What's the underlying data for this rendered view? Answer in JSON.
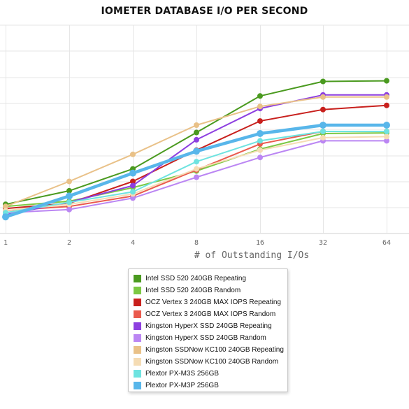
{
  "chart_data": {
    "type": "line",
    "title": "IOMETER DATABASE I/O PER SECOND",
    "xlabel": "# of Outstanding I/Os",
    "ylabel": "",
    "categories": [
      "1",
      "2",
      "4",
      "8",
      "16",
      "32",
      "64"
    ],
    "ylim": [
      0,
      100
    ],
    "grid": true,
    "legend_position": "bottom-center",
    "series": [
      {
        "name": "Intel SSD 520 240GB Repeating",
        "color": "#4a9a1f",
        "values": [
          14,
          20.5,
          31,
          48.5,
          66,
          73,
          73.3
        ]
      },
      {
        "name": "Intel SSD 520 240GB Random",
        "color": "#7cc843",
        "values": [
          13,
          15.5,
          22,
          30,
          40.5,
          48,
          48.3
        ]
      },
      {
        "name": "OCZ Vertex 3 240GB MAX IOPS Repeating",
        "color": "#c8201d",
        "values": [
          12,
          14.5,
          25,
          40,
          54,
          59.5,
          61.5
        ]
      },
      {
        "name": "OCZ Vertex 3 240GB MAX IOPS Random",
        "color": "#ea5a4d",
        "values": [
          11,
          13,
          18,
          30.5,
          43,
          49,
          49
        ]
      },
      {
        "name": "Kingston HyperX SSD 240GB Repeating",
        "color": "#8d3fe0",
        "values": [
          9,
          15,
          23,
          45,
          60,
          66.5,
          66.5
        ]
      },
      {
        "name": "Kingston HyperX SSD 240GB Random",
        "color": "#bb86f3",
        "values": [
          10,
          11.5,
          17,
          27,
          36.5,
          44.5,
          44.5
        ]
      },
      {
        "name": "Kingston SSDNow KC100 240GB Repeating",
        "color": "#e9c188",
        "values": [
          13,
          25,
          38,
          52,
          61,
          65.5,
          65.5
        ]
      },
      {
        "name": "Kingston SSDNow KC100 240GB Random",
        "color": "#f5dcb4",
        "values": [
          11,
          14,
          19,
          31,
          40,
          46,
          46.5
        ]
      },
      {
        "name": "Plextor PX-M3S 256GB",
        "color": "#6ee3e0",
        "values": [
          10,
          15,
          20,
          34.5,
          44.5,
          49,
          49
        ]
      },
      {
        "name": "Plextor PX-M3P 256GB",
        "color": "#58b6ea",
        "values": [
          8,
          18,
          29,
          39.5,
          48,
          52,
          52
        ]
      }
    ]
  }
}
